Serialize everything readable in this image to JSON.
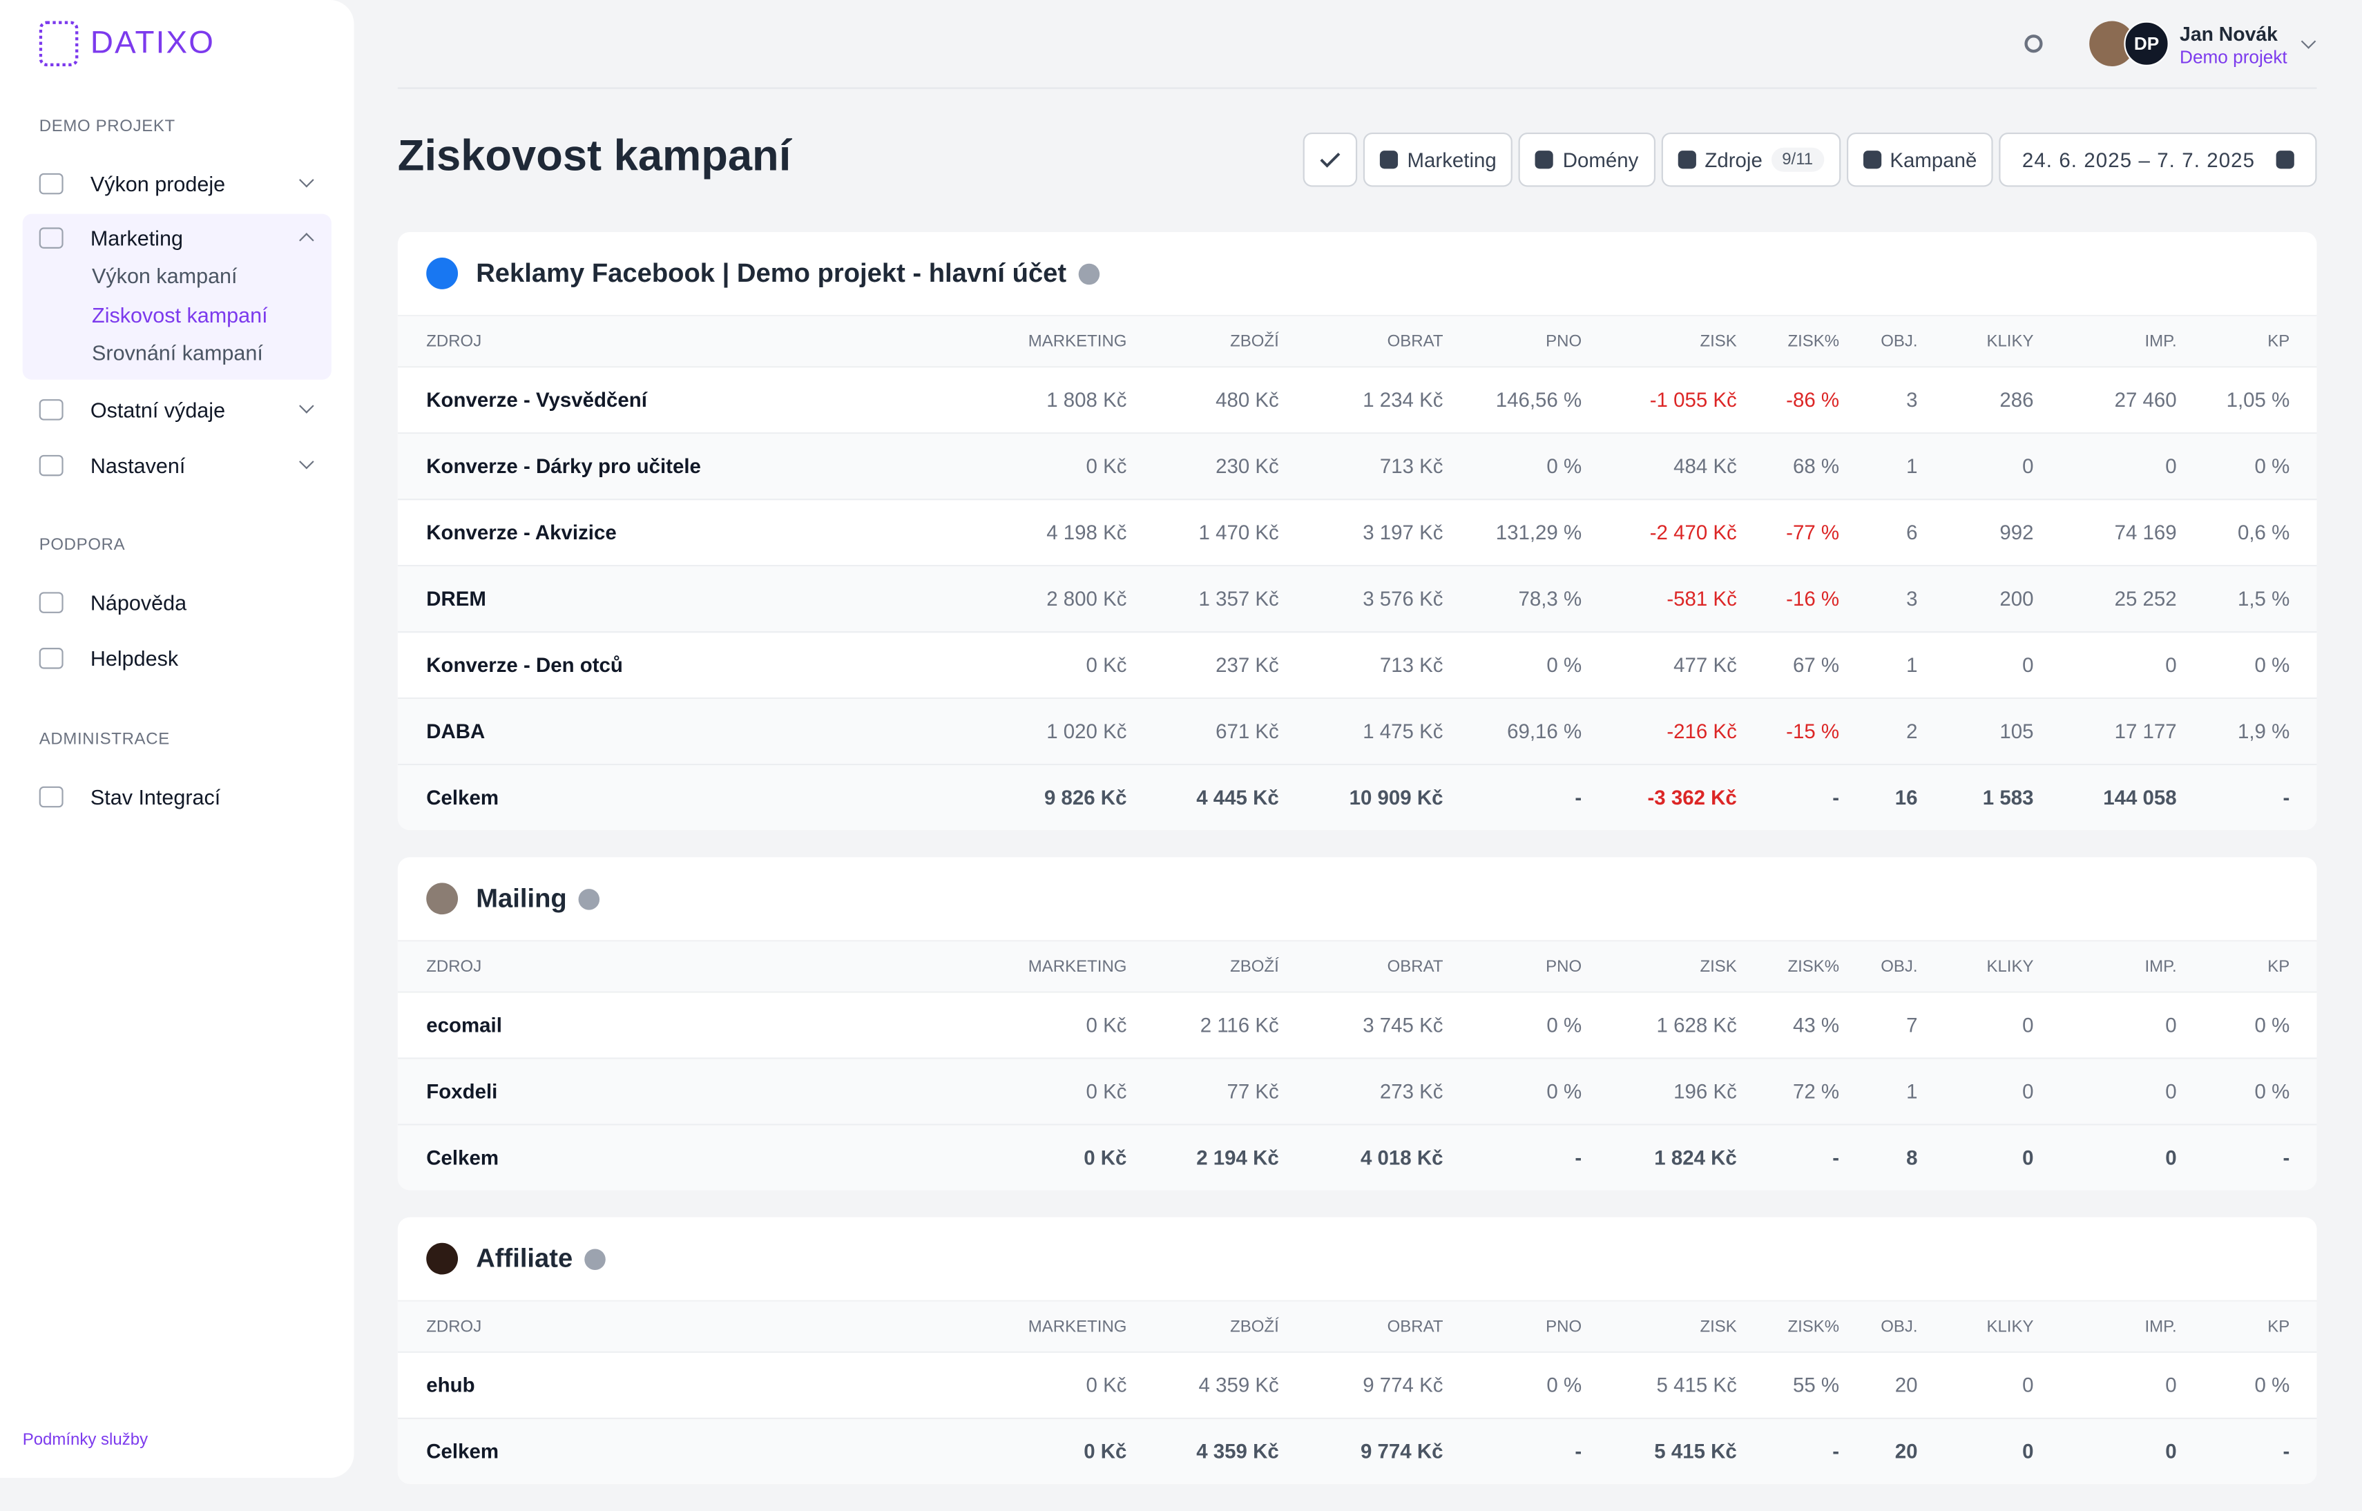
{
  "brand": "DATIXO",
  "sidebar": {
    "sections": [
      {
        "title": "DEMO PROJEKT",
        "items": [
          {
            "label": "Výkon prodeje"
          },
          {
            "label": "Marketing",
            "children": [
              "Výkon kampaní",
              "Ziskovost kampaní",
              "Srovnání kampaní"
            ]
          },
          {
            "label": "Ostatní výdaje"
          },
          {
            "label": "Nastavení"
          }
        ]
      },
      {
        "title": "PODPORA",
        "items": [
          {
            "label": "Nápověda"
          },
          {
            "label": "Helpdesk"
          }
        ]
      },
      {
        "title": "ADMINISTRACE",
        "items": [
          {
            "label": "Stav Integrací"
          }
        ]
      }
    ],
    "footer": "Podmínky služby"
  },
  "user": {
    "initials": "DP",
    "name": "Jan Novák",
    "project": "Demo projekt"
  },
  "page": {
    "title": "Ziskovost kampaní",
    "filters": [
      "Marketing",
      "Domény",
      "Zdroje",
      "Kampaně"
    ],
    "sources_badge": "9/11",
    "date_range": "24. 6. 2025 – 7. 7. 2025"
  },
  "columns": [
    "ZDROJ",
    "MARKETING",
    "ZBOŽÍ",
    "OBRAT",
    "PNO",
    "ZISK",
    "ZISK%",
    "OBJ.",
    "KLIKY",
    "IMP.",
    "KP"
  ],
  "tables": [
    {
      "title": "Reklamy Facebook | Demo projekt - hlavní účet",
      "rows": [
        [
          "Konverze - Vysvědčení",
          "1 808 Kč",
          "480 Kč",
          "1 234 Kč",
          "146,56 %",
          "-1 055 Kč",
          "-86 %",
          "3",
          "286",
          "27 460",
          "1,05 %"
        ],
        [
          "Konverze - Dárky pro učitele",
          "0 Kč",
          "230 Kč",
          "713 Kč",
          "0 %",
          "484 Kč",
          "68 %",
          "1",
          "0",
          "0",
          "0 %"
        ],
        [
          "Konverze - Akvizice",
          "4 198 Kč",
          "1 470 Kč",
          "3 197 Kč",
          "131,29 %",
          "-2 470 Kč",
          "-77 %",
          "6",
          "992",
          "74 169",
          "0,6 %"
        ],
        [
          "DREM",
          "2 800 Kč",
          "1 357 Kč",
          "3 576 Kč",
          "78,3 %",
          "-581 Kč",
          "-16 %",
          "3",
          "200",
          "25 252",
          "1,5 %"
        ],
        [
          "Konverze - Den otců",
          "0 Kč",
          "237 Kč",
          "713 Kč",
          "0 %",
          "477 Kč",
          "67 %",
          "1",
          "0",
          "0",
          "0 %"
        ],
        [
          "DABA",
          "1 020 Kč",
          "671 Kč",
          "1 475 Kč",
          "69,16 %",
          "-216 Kč",
          "-15 %",
          "2",
          "105",
          "17 177",
          "1,9 %"
        ]
      ],
      "total": [
        "Celkem",
        "9 826 Kč",
        "4 445 Kč",
        "10 909 Kč",
        "-",
        "-3 362 Kč",
        "-",
        "16",
        "1 583",
        "144 058",
        "-"
      ]
    },
    {
      "title": "Mailing",
      "rows": [
        [
          "ecomail",
          "0 Kč",
          "2 116 Kč",
          "3 745 Kč",
          "0 %",
          "1 628 Kč",
          "43 %",
          "7",
          "0",
          "0",
          "0 %"
        ],
        [
          "Foxdeli",
          "0 Kč",
          "77 Kč",
          "273 Kč",
          "0 %",
          "196 Kč",
          "72 %",
          "1",
          "0",
          "0",
          "0 %"
        ]
      ],
      "total": [
        "Celkem",
        "0 Kč",
        "2 194 Kč",
        "4 018 Kč",
        "-",
        "1 824 Kč",
        "-",
        "8",
        "0",
        "0",
        "-"
      ]
    },
    {
      "title": "Affiliate",
      "rows": [
        [
          "ehub",
          "0 Kč",
          "4 359 Kč",
          "9 774 Kč",
          "0 %",
          "5 415 Kč",
          "55 %",
          "20",
          "0",
          "0",
          "0 %"
        ]
      ],
      "total": [
        "Celkem",
        "0 Kč",
        "4 359 Kč",
        "9 774 Kč",
        "-",
        "5 415 Kč",
        "-",
        "20",
        "0",
        "0",
        "-"
      ]
    }
  ]
}
